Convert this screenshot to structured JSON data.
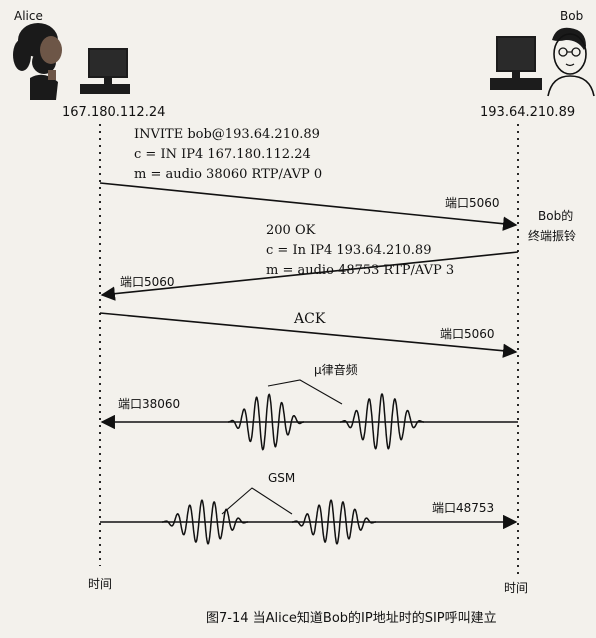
{
  "alice": {
    "name": "Alice",
    "ip": "167.180.112.24"
  },
  "bob": {
    "name": "Bob",
    "ip": "193.64.210.89",
    "ringing": [
      "Bob的",
      "终端振铃"
    ]
  },
  "messages": {
    "invite": {
      "lines": [
        "INVITE bob@193.64.210.89",
        "c = IN IP4 167.180.112.24",
        "m = audio 38060 RTP/AVP 0"
      ],
      "port": "端口5060"
    },
    "ok": {
      "lines": [
        "200 OK",
        "c = In IP4 193.64.210.89",
        "m = audio 48753 RTP/AVP 3"
      ],
      "port": "端口5060"
    },
    "ack": {
      "label": "ACK",
      "port": "端口5060"
    }
  },
  "media": {
    "mulaw": {
      "label": "μ律音频",
      "port": "端口38060"
    },
    "gsm": {
      "label": "GSM",
      "port": "端口48753"
    }
  },
  "time_label": "时间",
  "caption": "图7-14   当Alice知道Bob的IP地址时的SIP呼叫建立"
}
